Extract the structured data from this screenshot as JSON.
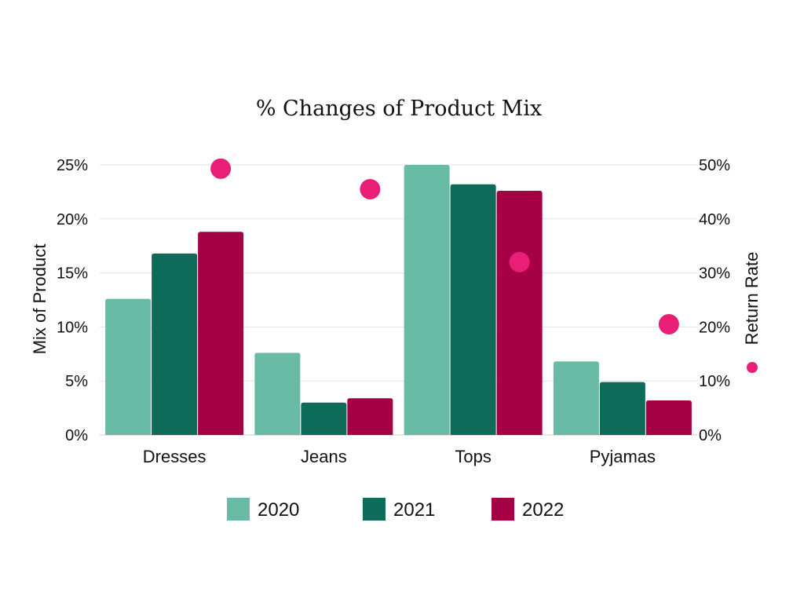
{
  "chart_data": {
    "type": "bar",
    "title": "% Changes of Product Mix",
    "categories": [
      "Dresses",
      "Jeans",
      "Tops",
      "Pyjamas"
    ],
    "series": [
      {
        "name": "2020",
        "values": [
          12.6,
          7.6,
          25.0,
          6.8
        ],
        "color": "#6abba6"
      },
      {
        "name": "2021",
        "values": [
          16.8,
          3.0,
          23.2,
          4.9
        ],
        "color": "#0e6b5a"
      },
      {
        "name": "2022",
        "values": [
          18.8,
          3.4,
          22.6,
          3.2
        ],
        "color": "#a50044"
      }
    ],
    "return_rate": {
      "name": "Return Rate",
      "values": [
        49.3,
        45.5,
        32.0,
        20.5
      ],
      "color": "#e91e76"
    },
    "ylabel": "Mix of Product",
    "y2label": "Return Rate",
    "ylim": [
      0,
      25
    ],
    "y2lim": [
      0,
      50
    ],
    "yticks": [
      "0%",
      "5%",
      "10%",
      "15%",
      "20%",
      "25%"
    ],
    "y2ticks": [
      "0%",
      "10%",
      "20%",
      "30%",
      "40%",
      "50%"
    ],
    "grid": true,
    "legend": "bottom"
  }
}
